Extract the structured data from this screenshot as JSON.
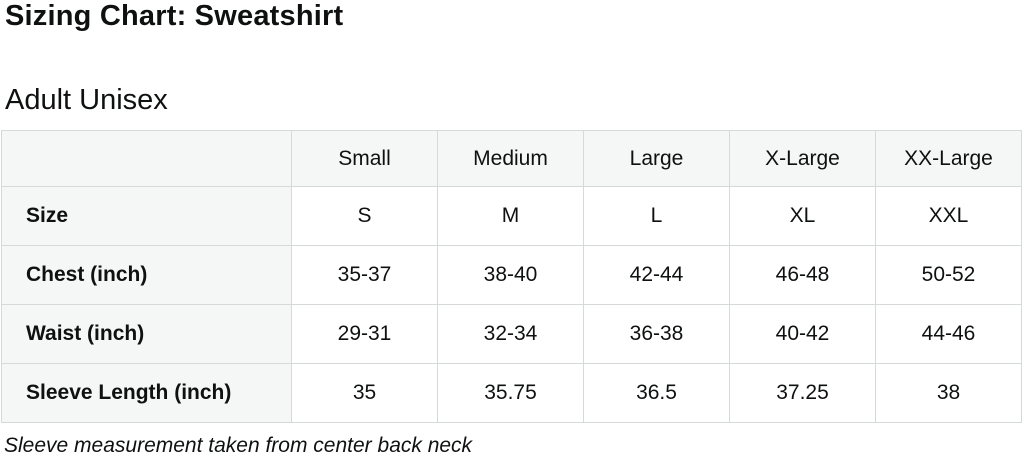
{
  "page": {
    "title": "Sizing Chart: Sweatshirt",
    "subtitle": "Adult Unisex",
    "footnote": "Sleeve measurement taken from center back neck"
  },
  "chart_data": {
    "type": "table",
    "title": "Sizing Chart: Sweatshirt — Adult Unisex",
    "columns": [
      "",
      "Small",
      "Medium",
      "Large",
      "X-Large",
      "XX-Large"
    ],
    "rows": [
      {
        "label": "Size",
        "values": [
          "S",
          "M",
          "L",
          "XL",
          "XXL"
        ]
      },
      {
        "label": "Chest (inch)",
        "values": [
          "35-37",
          "38-40",
          "42-44",
          "46-48",
          "50-52"
        ]
      },
      {
        "label": "Waist (inch)",
        "values": [
          "29-31",
          "32-34",
          "36-38",
          "40-42",
          "44-46"
        ]
      },
      {
        "label": "Sleeve Length (inch)",
        "values": [
          "35",
          "35.75",
          "36.5",
          "37.25",
          "38"
        ]
      }
    ],
    "layout": {
      "header_row_shaded": true,
      "label_column_shaded": true,
      "grid": true
    }
  },
  "colors": {
    "shaded_cell_bg": "#f5f6f6",
    "border": "#d5d9d9",
    "text": "#0f1111",
    "data_cell_bg": "#ffffff"
  }
}
